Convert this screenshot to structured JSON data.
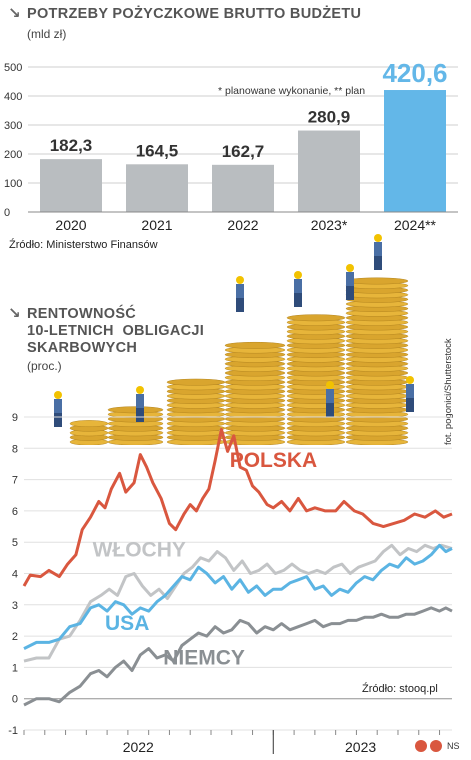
{
  "bar_section": {
    "title": "POTRZEBY POŻYCZKOWE BRUTTO BUDŻETU",
    "unit": "(mld zł)",
    "note": "* planowane wykonanie, ** plan",
    "source": "Źródło: Ministerstwo Finansów"
  },
  "line_section": {
    "title_line1": "RENTOWNOŚĆ",
    "title_line2": "10-LETNICH  OBLIGACJI",
    "title_line3": "SKARBOWYCH",
    "unit": "(proc.)",
    "source": "Źródło: stooq.pl"
  },
  "photo_credit": "fot. pogonici/Shutterstock",
  "footer_logo": "NS",
  "colors": {
    "bar_gray": "#b9bdc0",
    "bar_highlight": "#63b7e8",
    "polska": "#d9573f",
    "wlochy": "#c2c4c6",
    "usa": "#5bb4e3",
    "niemcy": "#8a8f93",
    "coin": "#e7b53a"
  },
  "chart_data": [
    {
      "type": "bar",
      "title": "POTRZEBY POŻYCZKOWE BRUTTO BUDŻETU",
      "ylabel": "(mld zł)",
      "categories": [
        "2020",
        "2021",
        "2022",
        "2023*",
        "2024**"
      ],
      "values": [
        182.3,
        164.5,
        162.7,
        280.9,
        420.6
      ],
      "value_labels": [
        "182,3",
        "164,5",
        "162,7",
        "280,9",
        "420,6"
      ],
      "highlight_index": 4,
      "ylim": [
        0,
        500
      ],
      "yticks": [
        "0",
        "100",
        "200",
        "300",
        "400",
        "500"
      ],
      "grid": true
    },
    {
      "type": "line",
      "title": "RENTOWNOŚĆ 10-LETNICH OBLIGACJI SKARBOWYCH",
      "ylabel": "(proc.)",
      "x_unit": "month index from January 2022",
      "x_labels": [
        "2022",
        "2023"
      ],
      "ylim": [
        -1,
        9
      ],
      "yticks": [
        "-1",
        "0",
        "1",
        "2",
        "3",
        "4",
        "5",
        "6",
        "7",
        "8",
        "9"
      ],
      "grid": true,
      "series": [
        {
          "name": "POLSKA",
          "color": "#d9573f",
          "points": [
            [
              0,
              3.6
            ],
            [
              0.3,
              3.95
            ],
            [
              0.8,
              3.9
            ],
            [
              1.2,
              4.1
            ],
            [
              1.7,
              3.9
            ],
            [
              2.1,
              4.3
            ],
            [
              2.5,
              4.6
            ],
            [
              2.8,
              5.4
            ],
            [
              3.2,
              5.8
            ],
            [
              3.6,
              6.3
            ],
            [
              3.9,
              6.1
            ],
            [
              4.2,
              6.7
            ],
            [
              4.6,
              7.2
            ],
            [
              4.9,
              6.6
            ],
            [
              5.3,
              6.9
            ],
            [
              5.6,
              7.8
            ],
            [
              5.9,
              7.4
            ],
            [
              6.2,
              6.9
            ],
            [
              6.6,
              6.4
            ],
            [
              7.0,
              5.6
            ],
            [
              7.3,
              5.4
            ],
            [
              7.7,
              5.9
            ],
            [
              8.0,
              6.2
            ],
            [
              8.3,
              6.0
            ],
            [
              8.6,
              6.4
            ],
            [
              8.9,
              6.7
            ],
            [
              9.2,
              7.6
            ],
            [
              9.5,
              8.6
            ],
            [
              9.8,
              7.9
            ],
            [
              10.1,
              8.4
            ],
            [
              10.4,
              7.4
            ],
            [
              10.7,
              7.3
            ],
            [
              11.0,
              6.8
            ],
            [
              11.3,
              6.6
            ],
            [
              11.7,
              6.2
            ],
            [
              12.0,
              6.1
            ],
            [
              12.4,
              6.3
            ],
            [
              12.8,
              6.0
            ],
            [
              13.2,
              6.4
            ],
            [
              13.6,
              6.0
            ],
            [
              14.0,
              6.1
            ],
            [
              14.5,
              6.0
            ],
            [
              15.0,
              6.0
            ],
            [
              15.4,
              6.3
            ],
            [
              15.9,
              6.0
            ],
            [
              16.3,
              5.9
            ],
            [
              16.8,
              5.6
            ],
            [
              17.3,
              5.5
            ],
            [
              17.8,
              5.6
            ],
            [
              18.3,
              5.7
            ],
            [
              18.8,
              5.9
            ],
            [
              19.3,
              5.8
            ],
            [
              19.8,
              6.0
            ],
            [
              20.2,
              5.8
            ],
            [
              20.6,
              5.9
            ]
          ]
        },
        {
          "name": "WŁOCHY",
          "color": "#c2c4c6",
          "points": [
            [
              0,
              1.2
            ],
            [
              0.6,
              1.3
            ],
            [
              1.2,
              1.3
            ],
            [
              1.7,
              1.9
            ],
            [
              2.2,
              2.0
            ],
            [
              2.7,
              2.5
            ],
            [
              3.2,
              3.1
            ],
            [
              3.7,
              3.3
            ],
            [
              4.1,
              3.5
            ],
            [
              4.5,
              3.3
            ],
            [
              4.9,
              3.9
            ],
            [
              5.3,
              4.0
            ],
            [
              5.7,
              3.6
            ],
            [
              6.1,
              3.3
            ],
            [
              6.5,
              3.5
            ],
            [
              6.9,
              3.2
            ],
            [
              7.3,
              3.6
            ],
            [
              7.7,
              4.0
            ],
            [
              8.1,
              4.2
            ],
            [
              8.5,
              4.5
            ],
            [
              8.9,
              4.4
            ],
            [
              9.3,
              4.7
            ],
            [
              9.7,
              4.5
            ],
            [
              10.1,
              4.1
            ],
            [
              10.5,
              4.4
            ],
            [
              10.9,
              4.0
            ],
            [
              11.3,
              4.1
            ],
            [
              11.7,
              4.3
            ],
            [
              12.1,
              4.0
            ],
            [
              12.5,
              4.1
            ],
            [
              12.9,
              4.3
            ],
            [
              13.3,
              4.1
            ],
            [
              13.7,
              4.0
            ],
            [
              14.1,
              4.1
            ],
            [
              14.5,
              4.0
            ],
            [
              14.9,
              4.2
            ],
            [
              15.3,
              4.3
            ],
            [
              15.7,
              4.0
            ],
            [
              16.1,
              4.2
            ],
            [
              16.5,
              4.3
            ],
            [
              16.9,
              4.4
            ],
            [
              17.3,
              4.7
            ],
            [
              17.7,
              4.9
            ],
            [
              18.1,
              4.6
            ],
            [
              18.5,
              4.8
            ],
            [
              18.9,
              4.7
            ],
            [
              19.3,
              4.9
            ],
            [
              19.7,
              4.8
            ],
            [
              20.1,
              4.9
            ],
            [
              20.6,
              4.8
            ]
          ]
        },
        {
          "name": "USA",
          "color": "#5bb4e3",
          "points": [
            [
              0,
              1.6
            ],
            [
              0.6,
              1.8
            ],
            [
              1.2,
              1.8
            ],
            [
              1.7,
              1.9
            ],
            [
              2.2,
              2.3
            ],
            [
              2.7,
              2.4
            ],
            [
              3.2,
              2.9
            ],
            [
              3.6,
              3.0
            ],
            [
              4.0,
              2.8
            ],
            [
              4.4,
              3.1
            ],
            [
              4.8,
              3.0
            ],
            [
              5.2,
              2.7
            ],
            [
              5.6,
              2.9
            ],
            [
              6.0,
              2.8
            ],
            [
              6.4,
              3.1
            ],
            [
              6.8,
              3.3
            ],
            [
              7.2,
              3.6
            ],
            [
              7.6,
              3.9
            ],
            [
              8.0,
              3.8
            ],
            [
              8.4,
              4.2
            ],
            [
              8.8,
              4.0
            ],
            [
              9.2,
              3.7
            ],
            [
              9.6,
              3.9
            ],
            [
              10.0,
              3.5
            ],
            [
              10.4,
              3.8
            ],
            [
              10.8,
              3.4
            ],
            [
              11.2,
              3.6
            ],
            [
              11.6,
              3.3
            ],
            [
              12.0,
              3.5
            ],
            [
              12.4,
              3.5
            ],
            [
              12.8,
              3.7
            ],
            [
              13.2,
              3.8
            ],
            [
              13.6,
              3.9
            ],
            [
              14.0,
              3.5
            ],
            [
              14.4,
              3.6
            ],
            [
              14.8,
              3.3
            ],
            [
              15.2,
              3.5
            ],
            [
              15.6,
              3.4
            ],
            [
              16.0,
              3.7
            ],
            [
              16.4,
              3.9
            ],
            [
              16.8,
              3.8
            ],
            [
              17.2,
              4.1
            ],
            [
              17.6,
              4.3
            ],
            [
              18.0,
              4.2
            ],
            [
              18.4,
              4.5
            ],
            [
              18.8,
              4.3
            ],
            [
              19.2,
              4.4
            ],
            [
              19.6,
              4.6
            ],
            [
              20.0,
              4.9
            ],
            [
              20.3,
              4.7
            ],
            [
              20.6,
              4.8
            ]
          ]
        },
        {
          "name": "NIEMCY",
          "color": "#8a8f93",
          "points": [
            [
              0,
              -0.2
            ],
            [
              0.6,
              0.0
            ],
            [
              1.2,
              0.0
            ],
            [
              1.7,
              -0.1
            ],
            [
              2.2,
              0.2
            ],
            [
              2.7,
              0.4
            ],
            [
              3.2,
              0.8
            ],
            [
              3.6,
              0.9
            ],
            [
              4.0,
              0.7
            ],
            [
              4.4,
              1.0
            ],
            [
              4.8,
              1.2
            ],
            [
              5.2,
              0.9
            ],
            [
              5.6,
              1.4
            ],
            [
              6.0,
              1.6
            ],
            [
              6.4,
              1.3
            ],
            [
              6.8,
              1.4
            ],
            [
              7.2,
              1.2
            ],
            [
              7.6,
              1.7
            ],
            [
              8.0,
              1.9
            ],
            [
              8.4,
              2.1
            ],
            [
              8.8,
              2.0
            ],
            [
              9.2,
              2.3
            ],
            [
              9.6,
              2.1
            ],
            [
              10.0,
              2.2
            ],
            [
              10.4,
              2.5
            ],
            [
              10.8,
              2.4
            ],
            [
              11.2,
              2.1
            ],
            [
              11.6,
              2.3
            ],
            [
              12.0,
              2.2
            ],
            [
              12.4,
              2.4
            ],
            [
              12.8,
              2.2
            ],
            [
              13.2,
              2.3
            ],
            [
              13.6,
              2.4
            ],
            [
              14.0,
              2.5
            ],
            [
              14.4,
              2.3
            ],
            [
              14.8,
              2.4
            ],
            [
              15.2,
              2.4
            ],
            [
              15.6,
              2.5
            ],
            [
              16.0,
              2.5
            ],
            [
              16.4,
              2.6
            ],
            [
              16.8,
              2.6
            ],
            [
              17.2,
              2.7
            ],
            [
              17.6,
              2.6
            ],
            [
              18.0,
              2.6
            ],
            [
              18.4,
              2.7
            ],
            [
              18.8,
              2.7
            ],
            [
              19.2,
              2.8
            ],
            [
              19.6,
              2.9
            ],
            [
              20.0,
              2.8
            ],
            [
              20.3,
              2.9
            ],
            [
              20.6,
              2.8
            ]
          ]
        }
      ]
    }
  ]
}
